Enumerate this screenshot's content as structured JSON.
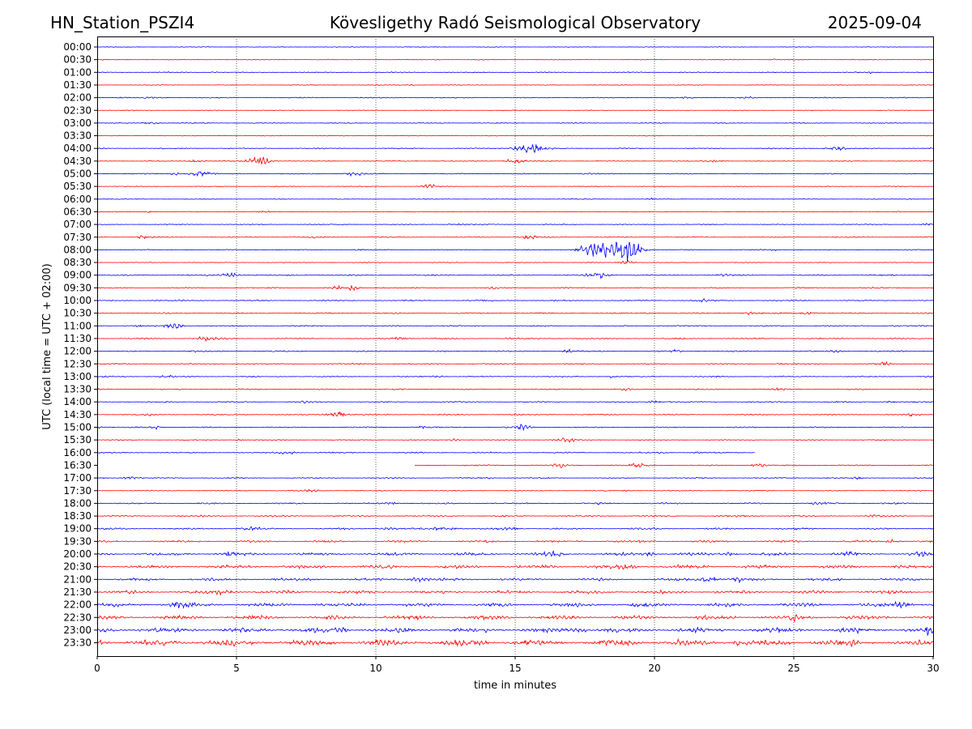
{
  "header": {
    "station": "HN_Station_PSZI4",
    "observatory": "Kövesligethy Radó Seismological Observatory",
    "date": "2025-09-04"
  },
  "chart_data": {
    "type": "line",
    "title": "Kövesligethy Radó Seismological Observatory",
    "xlabel": "time in minutes",
    "ylabel": "UTC (local time = UTC + 02:00)",
    "xlim": [
      0,
      30
    ],
    "x_ticks": [
      "0",
      "5",
      "10",
      "15",
      "20",
      "25",
      "30"
    ],
    "x_tick_values": [
      0,
      5,
      10,
      15,
      20,
      25,
      30
    ],
    "grid": "vertical dotted at x ticks",
    "colors": {
      "even_row": "#0000ff",
      "odd_row": "#ff0000"
    },
    "rows": [
      {
        "label": "00:00",
        "start": 0,
        "end": 30,
        "base": 0.3,
        "events": []
      },
      {
        "label": "00:30",
        "start": 0,
        "end": 30,
        "base": 0.3,
        "events": [
          [
            12.2,
            0.3,
            2
          ],
          [
            22.7,
            0.3,
            4
          ],
          [
            24.3,
            0.3,
            2
          ]
        ]
      },
      {
        "label": "01:00",
        "start": 0,
        "end": 30,
        "base": 0.4,
        "events": [
          [
            27.8,
            0.6,
            3
          ],
          [
            4.2,
            0.3,
            2
          ]
        ]
      },
      {
        "label": "01:30",
        "start": 0,
        "end": 30,
        "base": 0.3,
        "events": [
          [
            11.3,
            0.4,
            2
          ]
        ]
      },
      {
        "label": "02:00",
        "start": 0,
        "end": 30,
        "base": 0.4,
        "events": [
          [
            0.9,
            0.4,
            2
          ],
          [
            1.9,
            0.5,
            3
          ],
          [
            21.2,
            0.6,
            3
          ],
          [
            23.3,
            0.4,
            3
          ]
        ]
      },
      {
        "label": "02:30",
        "start": 0,
        "end": 30,
        "base": 0.3,
        "events": []
      },
      {
        "label": "03:00",
        "start": 0,
        "end": 30,
        "base": 0.4,
        "events": [
          [
            2.0,
            1.0,
            4
          ]
        ]
      },
      {
        "label": "03:30",
        "start": 0,
        "end": 30,
        "base": 0.3,
        "events": [
          [
            26.0,
            0.3,
            3
          ]
        ]
      },
      {
        "label": "04:00",
        "start": 0,
        "end": 30,
        "base": 0.4,
        "events": [
          [
            15.5,
            3.5,
            7
          ],
          [
            26.5,
            1.5,
            4
          ],
          [
            8.0,
            0.3,
            2
          ]
        ]
      },
      {
        "label": "04:30",
        "start": 0,
        "end": 30,
        "base": 0.4,
        "events": [
          [
            3.5,
            1.0,
            4
          ],
          [
            5.8,
            4.0,
            5
          ],
          [
            15.0,
            2.0,
            4
          ],
          [
            22.2,
            1.0,
            3
          ]
        ]
      },
      {
        "label": "05:00",
        "start": 0,
        "end": 30,
        "base": 0.4,
        "events": [
          [
            3.7,
            2.0,
            5
          ],
          [
            9.2,
            1.5,
            4
          ],
          [
            17.5,
            0.8,
            3
          ],
          [
            2.8,
            1.2,
            2
          ]
        ]
      },
      {
        "label": "05:30",
        "start": 0,
        "end": 30,
        "base": 0.3,
        "events": [
          [
            11.9,
            2.0,
            3
          ],
          [
            19.5,
            0.3,
            2
          ]
        ]
      },
      {
        "label": "06:00",
        "start": 0,
        "end": 30,
        "base": 0.3,
        "events": [
          [
            19.9,
            0.6,
            2
          ],
          [
            29.2,
            0.4,
            2
          ]
        ]
      },
      {
        "label": "06:30",
        "start": 0,
        "end": 30,
        "base": 0.3,
        "events": [
          [
            1.9,
            0.8,
            2
          ],
          [
            6.0,
            0.5,
            3
          ],
          [
            28.8,
            0.4,
            2
          ]
        ]
      },
      {
        "label": "07:00",
        "start": 0,
        "end": 30,
        "base": 0.4,
        "events": [
          [
            13.0,
            0.6,
            5
          ],
          [
            29.8,
            0.8,
            2
          ]
        ]
      },
      {
        "label": "07:30",
        "start": 0,
        "end": 30,
        "base": 0.4,
        "events": [
          [
            1.7,
            1.6,
            3
          ],
          [
            15.5,
            1.5,
            4
          ],
          [
            7.8,
            0.6,
            2
          ]
        ]
      },
      {
        "label": "08:00",
        "start": 0,
        "end": 30,
        "base": 0.4,
        "events": [
          [
            17.9,
            7.0,
            7
          ],
          [
            19.2,
            9.0,
            5
          ],
          [
            18.7,
            5.0,
            6
          ],
          [
            9.4,
            0.6,
            2
          ],
          [
            24.3,
            0.5,
            2
          ]
        ]
      },
      {
        "label": "08:30",
        "start": 0,
        "end": 30,
        "base": 0.3,
        "events": [
          [
            19.0,
            2.0,
            3
          ]
        ]
      },
      {
        "label": "09:00",
        "start": 0,
        "end": 30,
        "base": 0.5,
        "events": [
          [
            4.8,
            2.0,
            4
          ],
          [
            18.0,
            2.5,
            5
          ],
          [
            22.5,
            0.8,
            3
          ],
          [
            29.9,
            1.0,
            2
          ]
        ]
      },
      {
        "label": "09:30",
        "start": 0,
        "end": 30,
        "base": 0.5,
        "events": [
          [
            9.2,
            4.0,
            2
          ],
          [
            8.6,
            1.5,
            2
          ],
          [
            14.2,
            0.8,
            2
          ],
          [
            28.0,
            0.8,
            2
          ],
          [
            10.3,
            0.6,
            2
          ]
        ]
      },
      {
        "label": "10:00",
        "start": 0,
        "end": 30,
        "base": 0.5,
        "events": [
          [
            21.7,
            1.2,
            4
          ],
          [
            2.2,
            0.5,
            2
          ],
          [
            14.0,
            0.5,
            3
          ]
        ]
      },
      {
        "label": "10:30",
        "start": 0,
        "end": 30,
        "base": 0.5,
        "events": [
          [
            23.5,
            1.0,
            4
          ],
          [
            25.5,
            1.0,
            4
          ],
          [
            19.8,
            0.6,
            2
          ]
        ]
      },
      {
        "label": "11:00",
        "start": 0,
        "end": 30,
        "base": 0.5,
        "events": [
          [
            2.8,
            2.5,
            4
          ],
          [
            1.5,
            0.6,
            2
          ],
          [
            28.7,
            0.6,
            3
          ]
        ]
      },
      {
        "label": "11:30",
        "start": 0,
        "end": 30,
        "base": 0.5,
        "events": [
          [
            4.0,
            1.5,
            5
          ],
          [
            10.8,
            1.3,
            5
          ],
          [
            14.8,
            0.4,
            2
          ]
        ]
      },
      {
        "label": "12:00",
        "start": 0,
        "end": 30,
        "base": 0.5,
        "events": [
          [
            17.0,
            1.2,
            3
          ],
          [
            20.8,
            1.0,
            2
          ],
          [
            26.5,
            0.7,
            3
          ],
          [
            3.5,
            0.5,
            3
          ]
        ]
      },
      {
        "label": "12:30",
        "start": 0,
        "end": 30,
        "base": 0.5,
        "events": [
          [
            28.3,
            1.5,
            2
          ],
          [
            24.5,
            0.6,
            3
          ],
          [
            9.5,
            0.5,
            3
          ]
        ]
      },
      {
        "label": "13:00",
        "start": 0,
        "end": 30,
        "base": 0.5,
        "events": [
          [
            12.3,
            0.8,
            3
          ],
          [
            18.5,
            1.2,
            2
          ],
          [
            2.5,
            0.6,
            3
          ],
          [
            29.8,
            0.8,
            2
          ]
        ]
      },
      {
        "label": "13:30",
        "start": 0,
        "end": 30,
        "base": 0.5,
        "events": [
          [
            24.5,
            1.5,
            3
          ],
          [
            19.0,
            0.7,
            3
          ],
          [
            17.3,
            0.6,
            2
          ]
        ]
      },
      {
        "label": "14:00",
        "start": 0,
        "end": 30,
        "base": 0.5,
        "events": [
          [
            20.0,
            1.0,
            4
          ],
          [
            28.5,
            0.8,
            3
          ],
          [
            7.4,
            0.5,
            2
          ]
        ]
      },
      {
        "label": "14:30",
        "start": 0,
        "end": 30,
        "base": 0.5,
        "events": [
          [
            8.6,
            2.0,
            5
          ],
          [
            29.3,
            1.5,
            2
          ],
          [
            1.9,
            0.8,
            2
          ],
          [
            15.0,
            0.5,
            3
          ]
        ]
      },
      {
        "label": "15:00",
        "start": 0,
        "end": 30,
        "base": 0.5,
        "events": [
          [
            2.1,
            2.0,
            2
          ],
          [
            15.3,
            2.0,
            3
          ],
          [
            0.1,
            1.0,
            1
          ],
          [
            11.7,
            0.7,
            4
          ]
        ]
      },
      {
        "label": "15:30",
        "start": 0,
        "end": 30,
        "base": 0.4,
        "events": [
          [
            16.8,
            1.5,
            5
          ],
          [
            12.8,
            1.0,
            3
          ],
          [
            5.1,
            0.8,
            2
          ]
        ]
      },
      {
        "label": "16:00",
        "start": 0,
        "end": 23.6,
        "base": 0.5,
        "events": [
          [
            6.8,
            1.0,
            5
          ],
          [
            20.2,
            0.6,
            3
          ],
          [
            21.5,
            0.6,
            2
          ]
        ]
      },
      {
        "label": "16:30",
        "start": 11.4,
        "end": 30,
        "base": 0.5,
        "events": [
          [
            16.6,
            1.5,
            3
          ],
          [
            19.5,
            1.5,
            4
          ],
          [
            23.7,
            1.5,
            3
          ]
        ]
      },
      {
        "label": "17:00",
        "start": 0,
        "end": 30,
        "base": 0.5,
        "events": [
          [
            1.2,
            1.0,
            4
          ],
          [
            27.3,
            0.8,
            2
          ],
          [
            14.0,
            0.5,
            3
          ]
        ]
      },
      {
        "label": "17:30",
        "start": 0,
        "end": 30,
        "base": 0.4,
        "events": [
          [
            7.7,
            0.8,
            4
          ],
          [
            19.0,
            0.5,
            2
          ]
        ]
      },
      {
        "label": "18:00",
        "start": 0,
        "end": 30,
        "base": 0.6,
        "events": [
          [
            10.5,
            1.0,
            4
          ],
          [
            26.0,
            0.8,
            4
          ],
          [
            18.0,
            0.6,
            3
          ]
        ]
      },
      {
        "label": "18:30",
        "start": 0,
        "end": 30,
        "base": 0.7,
        "events": [
          [
            27.8,
            0.6,
            3
          ]
        ]
      },
      {
        "label": "19:00",
        "start": 0,
        "end": 30,
        "base": 0.7,
        "events": [
          [
            12.5,
            2.0,
            5
          ],
          [
            14.8,
            1.0,
            5
          ],
          [
            5.5,
            0.8,
            5
          ],
          [
            10.5,
            1.0,
            4
          ]
        ]
      },
      {
        "label": "19:30",
        "start": 0,
        "end": 30,
        "base": 0.9,
        "events": [
          [
            28.5,
            1.2,
            4
          ]
        ]
      },
      {
        "label": "20:00",
        "start": 0,
        "end": 30,
        "base": 1.2,
        "events": [
          [
            4.8,
            2.0,
            3
          ],
          [
            16.5,
            1.2,
            6
          ],
          [
            19.8,
            1.5,
            3
          ],
          [
            22.7,
            1.2,
            3
          ],
          [
            27.0,
            1.5,
            3
          ],
          [
            29.5,
            1.2,
            3
          ]
        ]
      },
      {
        "label": "20:30",
        "start": 0,
        "end": 30,
        "base": 1.4,
        "events": [
          [
            19.0,
            1.5,
            5
          ]
        ]
      },
      {
        "label": "21:00",
        "start": 0,
        "end": 30,
        "base": 1.1,
        "events": [
          [
            22.0,
            2.0,
            5
          ],
          [
            23.0,
            1.5,
            2
          ],
          [
            11.5,
            1.5,
            5
          ]
        ]
      },
      {
        "label": "21:30",
        "start": 0,
        "end": 30,
        "base": 1.3,
        "events": [
          [
            4.5,
            1.2,
            5
          ]
        ]
      },
      {
        "label": "22:00",
        "start": 0,
        "end": 30,
        "base": 1.5,
        "events": [
          [
            3.0,
            2.0,
            5
          ],
          [
            28.8,
            2.0,
            5
          ],
          [
            19.5,
            1.2,
            4
          ]
        ]
      },
      {
        "label": "22:30",
        "start": 0,
        "end": 30,
        "base": 1.7,
        "events": [
          [
            25.0,
            1.5,
            3
          ]
        ]
      },
      {
        "label": "23:00",
        "start": 0,
        "end": 30,
        "base": 2.0,
        "events": [
          [
            8.7,
            1.8,
            3
          ],
          [
            17.4,
            1.8,
            3
          ],
          [
            29.8,
            1.5,
            2
          ]
        ]
      },
      {
        "label": "23:30",
        "start": 0,
        "end": 30,
        "base": 2.5,
        "events": [
          [
            0.1,
            2.5,
            1
          ],
          [
            13.8,
            1.5,
            2
          ],
          [
            23.0,
            1.5,
            2
          ],
          [
            27.0,
            1.5,
            3
          ]
        ]
      }
    ]
  }
}
